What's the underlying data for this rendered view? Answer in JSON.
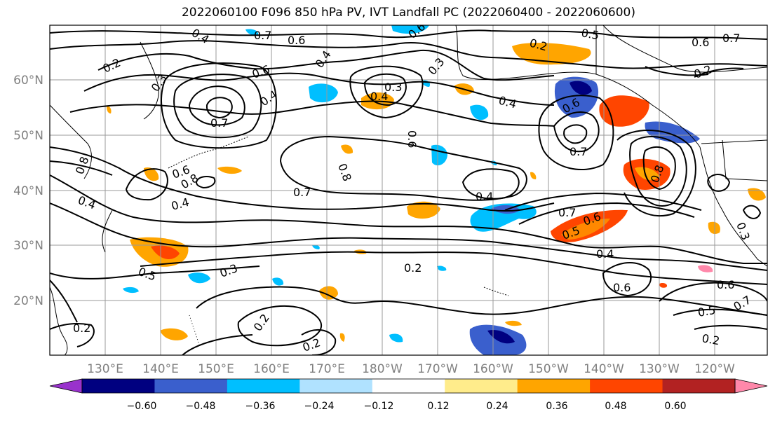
{
  "title": "2022060100 F096 850 hPa PV, IVT Landfall PC (2022060400 - 2022060600)",
  "lon_labels": [
    "130°E",
    "140°E",
    "150°E",
    "160°E",
    "170°E",
    "180°W",
    "170°W",
    "160°W",
    "150°W",
    "140°W",
    "130°W",
    "120°W"
  ],
  "lat_labels": [
    "60°N",
    "50°N",
    "40°N",
    "30°N",
    "20°N"
  ],
  "contour_labels": [
    "0.2",
    "0.3",
    "0.4",
    "0.5",
    "0.6",
    "0.7",
    "0.8"
  ],
  "colorbar": {
    "ticks": [
      "−0.60",
      "−0.48",
      "−0.36",
      "−0.24",
      "−0.12",
      "0.12",
      "0.24",
      "0.36",
      "0.48",
      "0.60"
    ],
    "colors": [
      "#9932cc",
      "#000080",
      "#3a5fcd",
      "#00bfff",
      "#b0e2ff",
      "#ffffff",
      "#ffec8b",
      "#ffa500",
      "#ff4500",
      "#b22222",
      "#ff88aa"
    ]
  }
}
